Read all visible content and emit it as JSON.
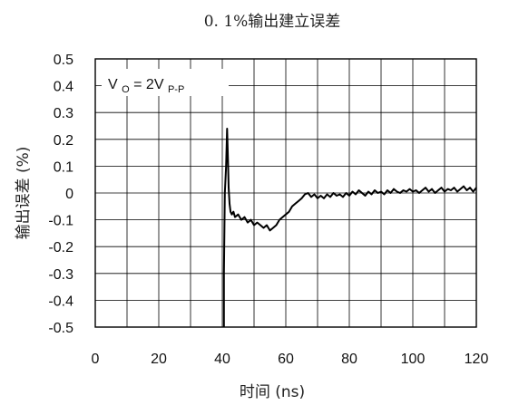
{
  "chart_data": {
    "type": "line",
    "title": "0. 1%输出建立误差",
    "xlabel": "时间 (ns)",
    "ylabel": "输出误差 (%)",
    "xlim": [
      0,
      120
    ],
    "ylim": [
      -0.5,
      0.5
    ],
    "xticks": [
      0,
      20,
      40,
      60,
      80,
      100,
      120
    ],
    "yticks": [
      0.5,
      0.4,
      0.3,
      0.2,
      0.1,
      0,
      -0.1,
      -0.2,
      -0.3,
      -0.4,
      -0.5
    ],
    "xtick_labels": [
      "0",
      "20",
      "40",
      "60",
      "80",
      "100",
      "120"
    ],
    "ytick_labels": [
      "0.5",
      "0.4",
      "0.3",
      "0.2",
      "0.1",
      "0",
      "-0.1",
      "-0.2",
      "-0.3",
      "-0.4",
      "-0.5"
    ],
    "grid": true,
    "annotation": {
      "v": "V",
      "v_sub": "O",
      "eq": " = 2V",
      "eq_sub": "P-P"
    },
    "series": [
      {
        "color": "#000000",
        "x": [
          40.5,
          40.5,
          40.8,
          41.2,
          41.5,
          41.8,
          42.0,
          42.3,
          42.6,
          43.0,
          43.5,
          44.0,
          45.0,
          46.0,
          47.0,
          48.0,
          49.0,
          50.0,
          51.0,
          52.0,
          53.0,
          54.0,
          55.0,
          56.0,
          57.0,
          58.0,
          59.0,
          60.0,
          61.0,
          62.0,
          63.0,
          64.0,
          65.0,
          66.0,
          67.0,
          68.0,
          69.0,
          70.0,
          71.0,
          72.0,
          73.0,
          74.0,
          75.0,
          76.0,
          77.0,
          78.0,
          79.0,
          80.0,
          81.0,
          82.0,
          83.0,
          84.0,
          85.0,
          86.0,
          87.0,
          88.0,
          89.0,
          90.0,
          91.0,
          92.0,
          93.0,
          94.0,
          95.0,
          96.0,
          97.0,
          98.0,
          99.0,
          100.0,
          101.0,
          102.0,
          103.0,
          104.0,
          105.0,
          106.0,
          107.0,
          108.0,
          109.0,
          110.0,
          111.0,
          112.0,
          113.0,
          114.0,
          115.0,
          116.0,
          117.0,
          118.0,
          119.0,
          120.0
        ],
        "y": [
          -0.5,
          -0.3,
          0.0,
          0.1,
          0.24,
          0.12,
          0.02,
          -0.04,
          -0.07,
          -0.08,
          -0.07,
          -0.09,
          -0.08,
          -0.1,
          -0.09,
          -0.11,
          -0.1,
          -0.12,
          -0.11,
          -0.12,
          -0.13,
          -0.12,
          -0.14,
          -0.13,
          -0.12,
          -0.1,
          -0.09,
          -0.08,
          -0.07,
          -0.05,
          -0.04,
          -0.03,
          -0.02,
          -0.005,
          0.0,
          -0.015,
          -0.005,
          -0.02,
          -0.01,
          -0.02,
          -0.005,
          -0.015,
          0.0,
          -0.01,
          -0.005,
          -0.015,
          0.0,
          -0.01,
          0.005,
          -0.005,
          0.01,
          0.0,
          -0.01,
          0.005,
          -0.005,
          0.01,
          0.0,
          0.005,
          -0.005,
          0.01,
          0.0,
          0.015,
          0.005,
          0.0,
          0.01,
          0.005,
          0.015,
          0.005,
          0.01,
          0.0,
          0.01,
          0.02,
          0.005,
          0.015,
          0.0,
          0.01,
          0.02,
          0.005,
          0.015,
          0.01,
          0.02,
          0.005,
          0.015,
          0.025,
          0.01,
          0.02,
          0.005,
          0.02
        ]
      }
    ]
  }
}
